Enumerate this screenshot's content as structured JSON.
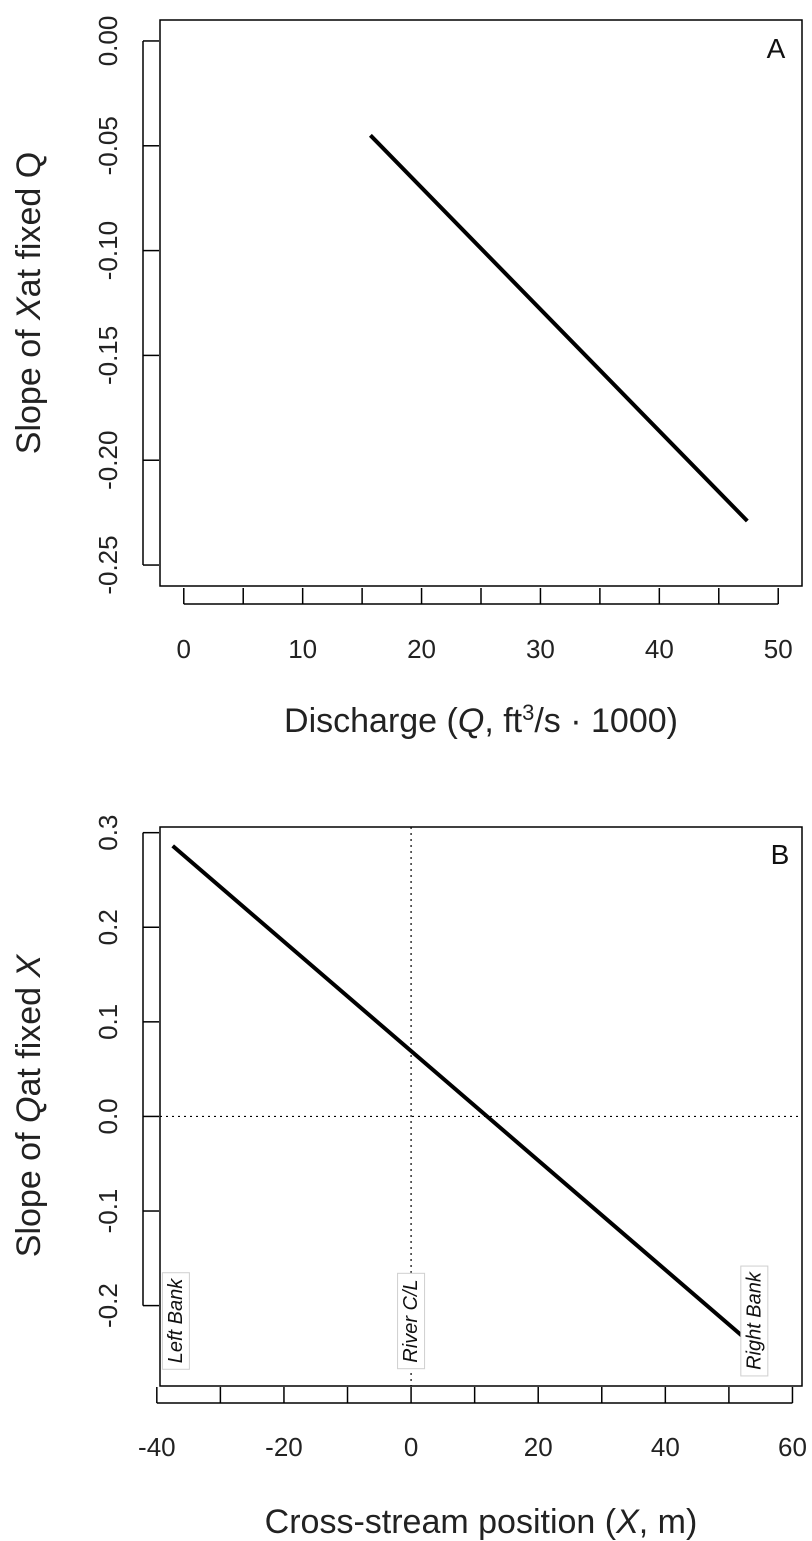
{
  "chart_data": [
    {
      "type": "line",
      "panel_label": "A",
      "xlabel_parts": [
        "Discharge (",
        "Q",
        ", ft",
        "3",
        "/s · 1000)"
      ],
      "ylabel_parts": [
        "Slope of ",
        "X",
        "at fixed Q"
      ],
      "xlim": [
        -2,
        52
      ],
      "ylim": [
        -0.26,
        0.01
      ],
      "xticks": [
        0,
        5,
        10,
        15,
        20,
        25,
        30,
        35,
        40,
        45,
        50
      ],
      "xtick_labels": [
        "0",
        "",
        "10",
        "",
        "20",
        "",
        "30",
        "",
        "40",
        "",
        "50"
      ],
      "yticks": [
        0.0,
        -0.05,
        -0.1,
        -0.15,
        -0.2,
        -0.25
      ],
      "ytick_labels": [
        "0.00",
        "-0.05",
        "-0.10",
        "-0.15",
        "-0.20",
        "-0.25"
      ],
      "series": [
        {
          "x": [
            15.7,
            47.4
          ],
          "y": [
            -0.045,
            -0.229
          ]
        }
      ]
    },
    {
      "type": "line",
      "panel_label": "B",
      "xlabel_parts": [
        "Cross-stream position (",
        "X",
        ", m)"
      ],
      "ylabel_parts": [
        "Slope of ",
        "Q",
        "at fixed ",
        "X"
      ],
      "xlim": [
        -39.5,
        61.5
      ],
      "ylim": [
        -0.285,
        0.306
      ],
      "xticks": [
        -40,
        -30,
        -20,
        -10,
        0,
        10,
        20,
        30,
        40,
        50,
        60
      ],
      "xtick_labels": [
        "-40",
        "",
        "-20",
        "",
        "0",
        "",
        "20",
        "",
        "40",
        "",
        "60"
      ],
      "yticks": [
        0.3,
        0.2,
        0.1,
        0.0,
        -0.1,
        -0.2
      ],
      "ytick_labels": [
        "0.3",
        "0.2",
        "0.1",
        "0.0",
        "-0.1",
        "-0.2"
      ],
      "series": [
        {
          "x": [
            -37.5,
            54.5
          ],
          "y": [
            0.286,
            -0.246
          ]
        }
      ],
      "reference_lines": {
        "horizontal_y": 0.0,
        "vertical_x": 0.0
      },
      "annotations": [
        {
          "text": "Left Bank",
          "x": -37
        },
        {
          "text": "River C/L",
          "x": 0
        },
        {
          "text": "Right Bank",
          "x": 54
        }
      ]
    }
  ]
}
